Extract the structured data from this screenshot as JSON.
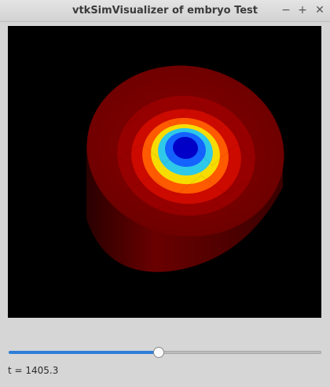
{
  "window": {
    "title": "vtkSimVisualizer of embryo Test",
    "controls": {
      "minimize": "−",
      "maximize": "+",
      "close": "✕"
    }
  },
  "viewport": {
    "background": "#000000",
    "field_colors": [
      "#6e0000",
      "#a00000",
      "#d61000",
      "#ff6600",
      "#f7e000",
      "#2ec8e8",
      "#1462ff",
      "#0000c8"
    ]
  },
  "time_slider": {
    "position_fraction": 0.48
  },
  "status": {
    "time_text": "t = 1405.3"
  }
}
